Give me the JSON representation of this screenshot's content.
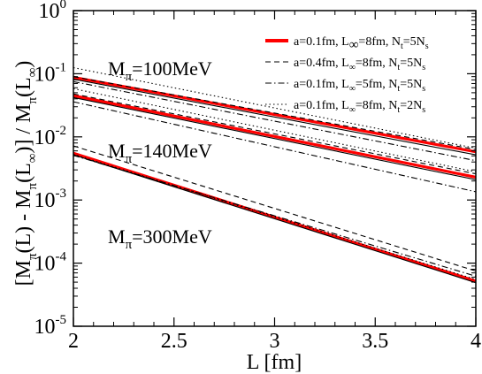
{
  "chart_data": {
    "type": "line",
    "title": "",
    "xlabel": "L [fm]",
    "ylabel_parts": {
      "open": "[M",
      "sub_pi": "π",
      "mid": "(L) - M",
      "inner": "(L",
      "sub_inf": "∞",
      "close_div": ")]  /  M",
      "end": ")"
    },
    "x_axis": {
      "range": [
        2,
        4
      ],
      "ticks": [
        2,
        2.5,
        3,
        3.5,
        4
      ],
      "tick_labels": [
        "2",
        "2.5",
        "3",
        "3.5",
        "4"
      ]
    },
    "y_axis": {
      "scale": "log",
      "range": [
        1e-05,
        1
      ],
      "ticks": [
        {
          "value": 1,
          "base": "10",
          "exp": "0"
        },
        {
          "value": 0.1,
          "base": "10",
          "exp": "-1"
        },
        {
          "value": 0.01,
          "base": "10",
          "exp": "-2"
        },
        {
          "value": 0.001,
          "base": "10",
          "exp": "-3"
        },
        {
          "value": 0.0001,
          "base": "10",
          "exp": "-4"
        },
        {
          "value": 1e-05,
          "base": "10",
          "exp": "-5"
        }
      ]
    },
    "legend": {
      "placement": "top-right",
      "entries": [
        {
          "style": "solid-red",
          "parts": [
            "a=0.1fm, L",
            "∞",
            "=8fm, N",
            "t",
            "=5N",
            "s"
          ]
        },
        {
          "style": "dashed",
          "parts": [
            "a=0.4fm, L",
            "∞",
            "=8fm, N",
            "t",
            "=5N",
            "s"
          ]
        },
        {
          "style": "dashdot",
          "parts": [
            "a=0.1fm, L",
            "∞",
            "=5fm, N",
            "t",
            "=5N",
            "s"
          ]
        },
        {
          "style": "dotted",
          "parts": [
            "a=0.1fm, L",
            "∞",
            "=8fm, N",
            "t",
            "=2N",
            "s"
          ]
        }
      ]
    },
    "annotations": [
      {
        "id": "m100",
        "prefix": "M",
        "sub": "π",
        "text": "=100MeV"
      },
      {
        "id": "m140",
        "prefix": "M",
        "sub": "π",
        "text": "=140MeV"
      },
      {
        "id": "m300",
        "prefix": "M",
        "sub": "π",
        "text": "=300MeV"
      }
    ],
    "series": [
      {
        "group": "m100",
        "style": "solid-red",
        "x": [
          2,
          4
        ],
        "y": [
          0.088,
          0.0058
        ]
      },
      {
        "group": "m100",
        "style": "solid-black",
        "x": [
          2,
          4
        ],
        "y": [
          0.082,
          0.0052
        ]
      },
      {
        "group": "m100",
        "style": "dashed",
        "x": [
          2,
          4
        ],
        "y": [
          0.09,
          0.0063
        ]
      },
      {
        "group": "m100",
        "style": "dashdot",
        "x": [
          2,
          4
        ],
        "y": [
          0.075,
          0.0042
        ]
      },
      {
        "group": "m100",
        "style": "dotted",
        "x": [
          2,
          4
        ],
        "y": [
          0.125,
          0.0066
        ]
      },
      {
        "group": "m140",
        "style": "solid-red",
        "x": [
          2,
          4
        ],
        "y": [
          0.045,
          0.0023
        ]
      },
      {
        "group": "m140",
        "style": "solid-black",
        "x": [
          2,
          4
        ],
        "y": [
          0.042,
          0.0021
        ]
      },
      {
        "group": "m140",
        "style": "dashed",
        "x": [
          2,
          4
        ],
        "y": [
          0.048,
          0.0026
        ]
      },
      {
        "group": "m140",
        "style": "dashdot",
        "x": [
          2,
          4
        ],
        "y": [
          0.036,
          0.00135
        ]
      },
      {
        "group": "m140",
        "style": "dotted",
        "x": [
          2,
          4
        ],
        "y": [
          0.058,
          0.0028
        ]
      },
      {
        "group": "m300",
        "style": "solid-red",
        "x": [
          2,
          4
        ],
        "y": [
          0.0055,
          5.2e-05
        ]
      },
      {
        "group": "m300",
        "style": "solid-black",
        "x": [
          2,
          4
        ],
        "y": [
          0.0052,
          4.9e-05
        ]
      },
      {
        "group": "m300",
        "style": "dashed",
        "x": [
          2,
          4
        ],
        "y": [
          0.0072,
          7.5e-05
        ]
      },
      {
        "group": "m300",
        "style": "dashdot",
        "x": [
          2,
          4
        ],
        "y": [
          0.0051,
          6.2e-05
        ]
      },
      {
        "group": "m300",
        "style": "dotted",
        "x": [
          2,
          4
        ],
        "y": [
          0.0053,
          5.5e-05
        ]
      }
    ]
  }
}
